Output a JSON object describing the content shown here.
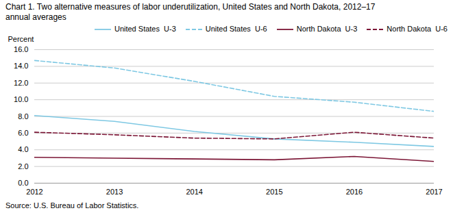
{
  "chart_data": {
    "type": "line",
    "title": "Chart 1. Two alternative measures of labor underutilization, United States and North Dakota, 2012–17",
    "subtitle": "annual averages",
    "y_label": "Percent",
    "caption": "Source: U.S. Bureau of Labor Statistics.",
    "x": [
      2012,
      2013,
      2014,
      2015,
      2016,
      2017
    ],
    "series": [
      {
        "name": "United States  U-3",
        "color": "#7ec8e3",
        "line_style": "solid",
        "values": [
          8.1,
          7.4,
          6.2,
          5.3,
          4.9,
          4.4
        ]
      },
      {
        "name": "United States  U-6",
        "color": "#7ec8e3",
        "line_style": "dashed",
        "values": [
          14.7,
          13.8,
          12.2,
          10.4,
          9.7,
          8.6
        ]
      },
      {
        "name": "North Dakota  U-3",
        "color": "#7b1535",
        "line_style": "solid",
        "values": [
          3.1,
          3.0,
          2.9,
          2.8,
          3.2,
          2.6
        ]
      },
      {
        "name": "North Dakota  U-6",
        "color": "#7b1535",
        "line_style": "dashed",
        "values": [
          6.1,
          5.8,
          5.4,
          5.3,
          6.1,
          5.4
        ]
      }
    ],
    "xlim": [
      2012,
      2017
    ],
    "xticks": [
      2012,
      2013,
      2014,
      2015,
      2016,
      2017
    ],
    "ylim": [
      0.0,
      16.0
    ],
    "yticks": [
      {
        "value": 0,
        "label": "0.0"
      },
      {
        "value": 2,
        "label": "2.0"
      },
      {
        "value": 4,
        "label": "4.0"
      },
      {
        "value": 6,
        "label": "6.0"
      },
      {
        "value": 8,
        "label": "8.0"
      },
      {
        "value": 10,
        "label": "10.0"
      },
      {
        "value": 12,
        "label": "12.0"
      },
      {
        "value": 14,
        "label": "14.0"
      },
      {
        "value": 16,
        "label": "16.0"
      }
    ],
    "grid": "y",
    "legend": "upper right"
  }
}
